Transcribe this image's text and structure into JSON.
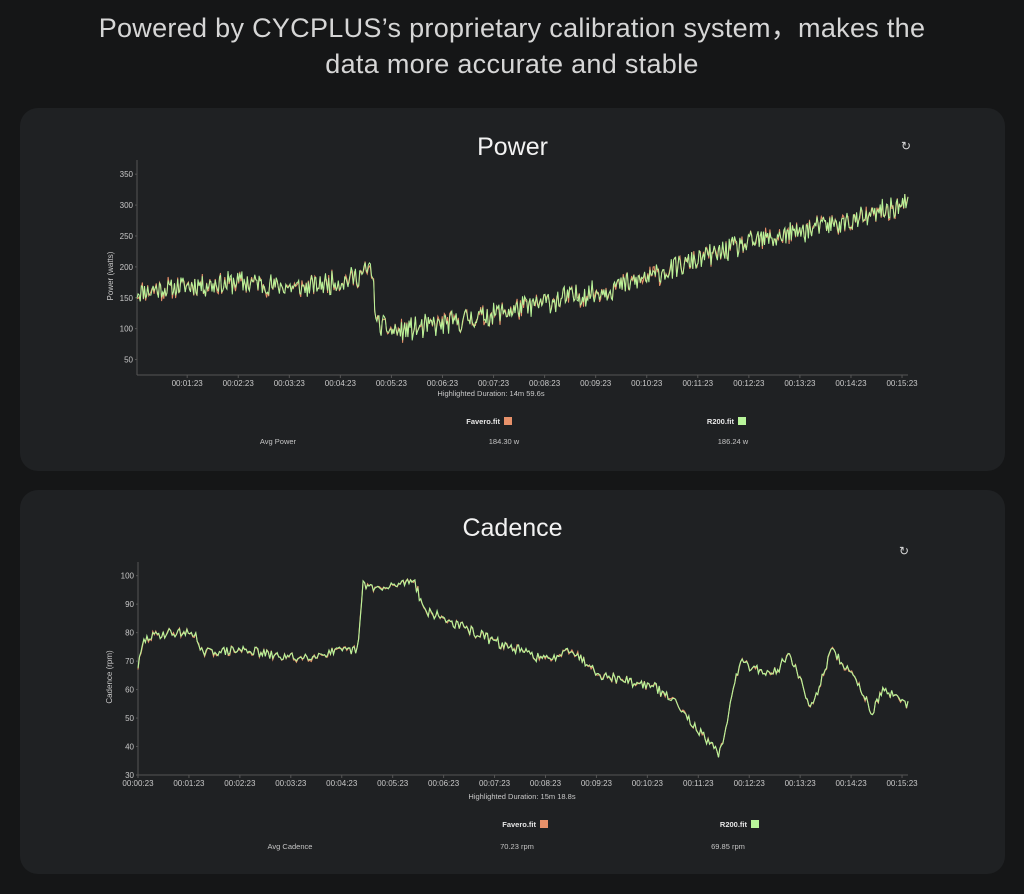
{
  "headline": {
    "line1": "Powered by CYCPLUS’s proprietary calibration system，makes the",
    "line2": "data more accurate and stable"
  },
  "colors": {
    "favero": "#e7916a",
    "r200": "#b8f59a",
    "background": "#151617",
    "panel": "#1f2123"
  },
  "icons": {
    "reset": "refresh-icon"
  },
  "chart_data": [
    {
      "type": "line",
      "title": "Power",
      "ylabel": "Power (watts)",
      "xlabel": "",
      "ylim": [
        25,
        360
      ],
      "yticks": [
        50,
        100,
        150,
        200,
        250,
        300,
        350
      ],
      "xlim_min": [
        0.4,
        15.5
      ],
      "xtick_labels": [
        "00:01:23",
        "00:02:23",
        "00:03:23",
        "00:04:23",
        "00:05:23",
        "00:06:23",
        "00:07:23",
        "00:08:23",
        "00:09:23",
        "00:10:23",
        "00:11:23",
        "00:12:23",
        "00:13:23",
        "00:14:23",
        "00:15:23"
      ],
      "xtick_minutes": [
        1.383,
        2.383,
        3.383,
        4.383,
        5.383,
        6.383,
        7.383,
        8.383,
        9.383,
        10.383,
        11.383,
        12.383,
        13.383,
        14.383,
        15.383
      ],
      "highlight": "Highlighted Duration: 14m 59.6s",
      "series": [
        {
          "name": "Favero.fit",
          "color": "#e7916a"
        },
        {
          "name": "R200.fit",
          "color": "#b8f59a"
        }
      ],
      "trend_minutes": [
        0.4,
        1.5,
        2.5,
        3.5,
        4.5,
        5.0,
        5.1,
        5.5,
        6.5,
        7.5,
        8.5,
        9.5,
        10.5,
        11.5,
        12.5,
        13.5,
        14.5,
        15.4
      ],
      "trend_watts": [
        160,
        170,
        175,
        165,
        178,
        195,
        105,
        95,
        110,
        125,
        145,
        160,
        185,
        215,
        240,
        260,
        275,
        300
      ],
      "summary_label": "Avg Power",
      "summary_values": [
        "184.30 w",
        "186.24 w"
      ]
    },
    {
      "type": "line",
      "title": "Cadence",
      "ylabel": "Cadence (rpm)",
      "xlabel": "",
      "ylim": [
        30,
        102
      ],
      "yticks": [
        30,
        40,
        50,
        60,
        70,
        80,
        90,
        100
      ],
      "xlim_min": [
        0.383,
        15.5
      ],
      "xtick_labels": [
        "00:00:23",
        "00:01:23",
        "00:02:23",
        "00:03:23",
        "00:04:23",
        "00:05:23",
        "00:06:23",
        "00:07:23",
        "00:08:23",
        "00:09:23",
        "00:10:23",
        "00:11:23",
        "00:12:23",
        "00:13:23",
        "00:14:23",
        "00:15:23"
      ],
      "xtick_minutes": [
        0.383,
        1.383,
        2.383,
        3.383,
        4.383,
        5.383,
        6.383,
        7.383,
        8.383,
        9.383,
        10.383,
        11.383,
        12.383,
        13.383,
        14.383,
        15.383
      ],
      "highlight": "Highlighted Duration: 15m 18.8s",
      "series": [
        {
          "name": "Favero.fit",
          "color": "#e7916a"
        },
        {
          "name": "R200.fit",
          "color": "#b8f59a"
        }
      ],
      "trend_minutes": [
        0.383,
        0.5,
        0.7,
        1.0,
        1.5,
        1.6,
        2.5,
        3.0,
        3.5,
        4.2,
        4.7,
        4.8,
        5.2,
        5.8,
        6.0,
        6.5,
        7.5,
        8.5,
        8.8,
        9.5,
        10.5,
        11.0,
        11.4,
        11.8,
        12.2,
        12.8,
        13.2,
        13.6,
        14.0,
        14.5,
        14.8,
        15.0,
        15.4
      ],
      "trend_rpm": [
        68,
        77,
        79,
        80,
        80,
        73,
        74,
        72,
        71,
        73,
        74,
        97,
        95,
        99,
        88,
        84,
        76,
        70,
        75,
        65,
        61,
        55,
        45,
        37,
        70,
        65,
        72,
        53,
        74,
        63,
        52,
        60,
        55
      ],
      "summary_label": "Avg Cadence",
      "summary_values": [
        "70.23 rpm",
        "69.85 rpm"
      ]
    }
  ]
}
